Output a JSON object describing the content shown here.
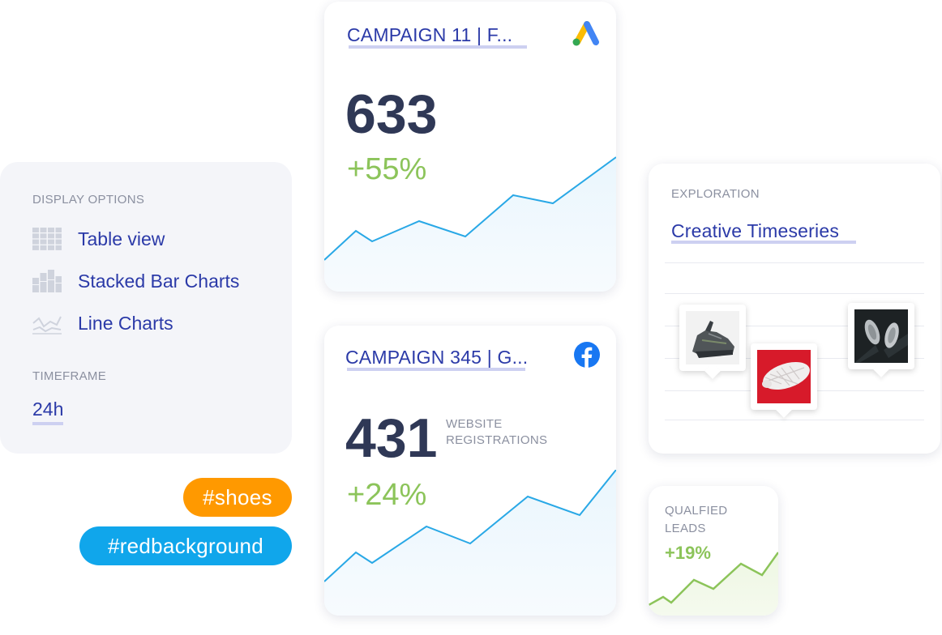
{
  "display_options": {
    "heading": "DISPLAY OPTIONS",
    "options": [
      {
        "label": "Table view",
        "icon": "table-icon"
      },
      {
        "label": "Stacked Bar Charts",
        "icon": "stacked-bar-icon"
      },
      {
        "label": "Line Charts",
        "icon": "line-chart-icon"
      }
    ],
    "timeframe_heading": "TIMEFRAME",
    "timeframe_value": "24h"
  },
  "tags": [
    {
      "label": "#shoes",
      "color": "#ff9900"
    },
    {
      "label": "#redbackground",
      "color": "#10a6eb"
    }
  ],
  "campaign_cards": [
    {
      "title": "CAMPAIGN 11 | F...",
      "platform_icon": "google-ads-icon",
      "value": "633",
      "delta": "+55%",
      "metric_label": ""
    },
    {
      "title": "CAMPAIGN 345 | G...",
      "platform_icon": "facebook-icon",
      "value": "431",
      "delta": "+24%",
      "metric_label_line1": "WEBSITE",
      "metric_label_line2": "REGISTRATIONS"
    }
  ],
  "exploration": {
    "heading": "EXPLORATION",
    "title": "Creative Timeseries",
    "thumbnails": [
      "shoe-grey-thumbnail",
      "shoe-sole-red-thumbnail",
      "shoes-dark-thumbnail"
    ]
  },
  "leads_card": {
    "label_line1": "QUALFIED",
    "label_line2": "LEADS",
    "delta": "+19%"
  },
  "colors": {
    "accent_blue": "#2b3aa8",
    "positive_green": "#8cc45a",
    "line_blue": "#29a8e6",
    "tag_orange": "#ff9900",
    "tag_blue": "#10a6eb"
  }
}
